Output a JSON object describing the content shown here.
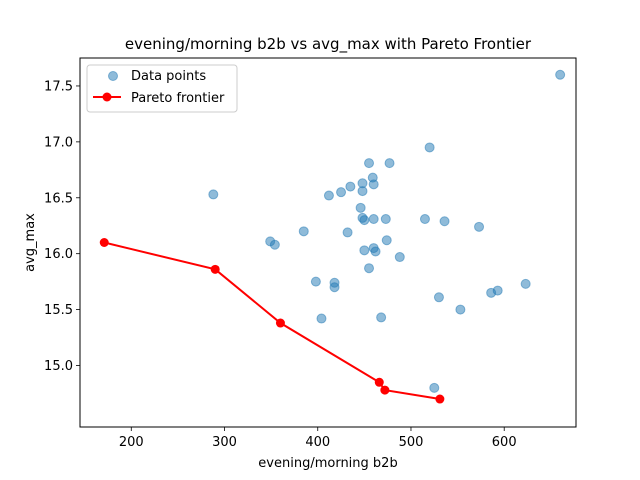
{
  "chart_data": {
    "type": "scatter",
    "title": "evening/morning b2b vs avg_max with Pareto Frontier",
    "xlabel": "evening/morning b2b",
    "ylabel": "avg_max",
    "xlim": [
      145,
      677
    ],
    "ylim": [
      14.45,
      17.75
    ],
    "xticks": [
      200,
      300,
      400,
      500,
      600
    ],
    "xtick_labels": [
      "200",
      "300",
      "400",
      "500",
      "600"
    ],
    "yticks": [
      15.0,
      15.5,
      16.0,
      16.5,
      17.0,
      17.5
    ],
    "ytick_labels": [
      "15.0",
      "15.5",
      "16.0",
      "16.5",
      "17.0",
      "17.5"
    ],
    "grid": false,
    "legend_position": "top-left",
    "colors": {
      "data_points": "#1f77b4",
      "pareto": "#ff0000"
    },
    "series": [
      {
        "name": "Data points",
        "kind": "scatter",
        "points": [
          [
            288,
            16.53
          ],
          [
            349,
            16.11
          ],
          [
            354,
            16.08
          ],
          [
            385,
            16.2
          ],
          [
            398,
            15.75
          ],
          [
            404,
            15.42
          ],
          [
            412,
            16.52
          ],
          [
            418,
            15.74
          ],
          [
            418,
            15.7
          ],
          [
            425,
            16.55
          ],
          [
            432,
            16.19
          ],
          [
            435,
            16.6
          ],
          [
            446,
            16.41
          ],
          [
            448,
            16.63
          ],
          [
            448,
            16.56
          ],
          [
            448,
            16.32
          ],
          [
            450,
            16.3
          ],
          [
            450,
            16.03
          ],
          [
            455,
            16.81
          ],
          [
            455,
            15.87
          ],
          [
            459,
            16.68
          ],
          [
            460,
            16.62
          ],
          [
            460,
            16.31
          ],
          [
            460,
            16.05
          ],
          [
            462,
            16.02
          ],
          [
            468,
            15.43
          ],
          [
            473,
            16.31
          ],
          [
            474,
            16.12
          ],
          [
            477,
            16.81
          ],
          [
            488,
            15.97
          ],
          [
            515,
            16.31
          ],
          [
            520,
            16.95
          ],
          [
            525,
            14.8
          ],
          [
            530,
            15.61
          ],
          [
            536,
            16.29
          ],
          [
            553,
            15.5
          ],
          [
            573,
            16.24
          ],
          [
            586,
            15.65
          ],
          [
            593,
            15.67
          ],
          [
            623,
            15.73
          ],
          [
            660,
            17.6
          ]
        ]
      },
      {
        "name": "Pareto frontier",
        "kind": "line",
        "points": [
          [
            171,
            16.1
          ],
          [
            290,
            15.86
          ],
          [
            360,
            15.38
          ],
          [
            466,
            14.85
          ],
          [
            472,
            14.78
          ],
          [
            531,
            14.7
          ]
        ]
      }
    ]
  }
}
